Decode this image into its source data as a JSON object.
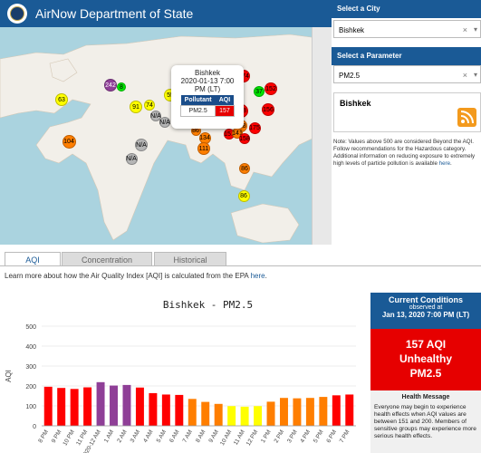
{
  "header": {
    "title": "AirNow Department of State"
  },
  "map": {
    "popup": {
      "city": "Bishkek",
      "datetime": "2020-01-13 7:00 PM (LT)",
      "col_pollutant": "Pollutant",
      "col_aqi": "AQI",
      "pollutant": "PM2.5",
      "aqi": "157"
    },
    "markers": [
      {
        "label": "63",
        "color": "#ffff00"
      },
      {
        "label": "242",
        "color": "#8f3f97"
      },
      {
        "label": "8",
        "color": "#00e400"
      },
      {
        "label": "91",
        "color": "#ffff00"
      },
      {
        "label": "74",
        "color": "#ffff00"
      },
      {
        "label": "N/A",
        "color": "#b5b5b5"
      },
      {
        "label": "55",
        "color": "#ffff00"
      },
      {
        "label": "55",
        "color": "#ffff00"
      },
      {
        "label": "154",
        "color": "#ff0000"
      },
      {
        "label": "157",
        "color": "#ff0000"
      },
      {
        "label": "N/A",
        "color": "#b5b5b5"
      },
      {
        "label": "65",
        "color": "#ffff00"
      },
      {
        "label": "171",
        "color": "#ff0000"
      },
      {
        "label": "68",
        "color": "#ffff00"
      },
      {
        "label": "159",
        "color": "#ff0000"
      },
      {
        "label": "N/A",
        "color": "#b5b5b5"
      },
      {
        "label": "104",
        "color": "#ff7e00"
      },
      {
        "label": "N/A",
        "color": "#b5b5b5"
      },
      {
        "label": "N/A",
        "color": "#b5b5b5"
      },
      {
        "label": "86",
        "color": "#ff7e00"
      },
      {
        "label": "134",
        "color": "#ff7e00"
      },
      {
        "label": "111",
        "color": "#ff7e00"
      },
      {
        "label": "158",
        "color": "#ff0000"
      },
      {
        "label": "174",
        "color": "#ff0000"
      },
      {
        "label": "37",
        "color": "#00e400"
      },
      {
        "label": "152",
        "color": "#ff0000"
      },
      {
        "label": "156",
        "color": "#ff0000"
      },
      {
        "label": "175",
        "color": "#ff0000"
      },
      {
        "label": "118",
        "color": "#ff7e00"
      },
      {
        "label": "151",
        "color": "#ff0000"
      },
      {
        "label": "141",
        "color": "#ff7e00"
      },
      {
        "label": "158",
        "color": "#ff0000"
      },
      {
        "label": "86",
        "color": "#ff7e00"
      },
      {
        "label": "86",
        "color": "#ffff00"
      }
    ]
  },
  "panel": {
    "city_label": "Select a City",
    "city_value": "Bishkek",
    "param_label": "Select a Parameter",
    "param_value": "PM2.5",
    "clear_glyph": "×",
    "caret_glyph": "▾",
    "selected_city": "Bishkek",
    "note": "Note: Values above 500 are considered Beyond the AQI. Follow recommendations for the Hazardous category. Additional information on reducing exposure to extremely high levels of particle pollution is available",
    "note_link": "here",
    "note_end": "."
  },
  "tabs": [
    {
      "label": "AQI",
      "active": true
    },
    {
      "label": "Concentration",
      "active": false
    },
    {
      "label": "Historical",
      "active": false
    }
  ],
  "learn": {
    "text": "Learn more about how the Air Quality Index [AQI] is calculated from the EPA",
    "link": "here",
    "end": "."
  },
  "chart_data": {
    "type": "bar",
    "title": "Bishkek - PM2.5",
    "ylabel": "AQI",
    "ylim": [
      0,
      500
    ],
    "yticks": [
      0,
      100,
      200,
      300,
      400,
      500
    ],
    "categories": [
      "8 PM",
      "9 PM",
      "10 PM",
      "11 PM",
      "2020-12 AM",
      "1 AM",
      "2 AM",
      "3 AM",
      "4 AM",
      "5 AM",
      "6 AM",
      "7 AM",
      "8 AM",
      "9 AM",
      "10 AM",
      "11 AM",
      "12 PM",
      "1 PM",
      "2 PM",
      "3 PM",
      "4 PM",
      "5 PM",
      "6 PM",
      "7 PM"
    ],
    "values": [
      196,
      190,
      185,
      193,
      219,
      202,
      205,
      192,
      164,
      157,
      155,
      135,
      120,
      110,
      99,
      96,
      99,
      121,
      140,
      138,
      140,
      145,
      153,
      157
    ],
    "colors": [
      "#ff0000",
      "#ff0000",
      "#ff0000",
      "#ff0000",
      "#8f3f97",
      "#8f3f97",
      "#8f3f97",
      "#ff0000",
      "#ff0000",
      "#ff0000",
      "#ff0000",
      "#ff7e00",
      "#ff7e00",
      "#ff7e00",
      "#ffff00",
      "#ffff00",
      "#ffff00",
      "#ff7e00",
      "#ff7e00",
      "#ff7e00",
      "#ff7e00",
      "#ff7e00",
      "#ff0000",
      "#ff0000"
    ],
    "grid": true
  },
  "current": {
    "title": "Current Conditions",
    "observed": "observed at",
    "date": "Jan 13, 2020 7:00 PM (LT)",
    "aqi_line": "157 AQI",
    "category": "Unhealthy",
    "pollutant": "PM2.5",
    "status_color": "#e60000",
    "health_title": "Health Message",
    "health_text": "Everyone may begin to experience health effects when AQI values are between 151 and 200. Members of sensitive groups may experience more serious health effects."
  }
}
